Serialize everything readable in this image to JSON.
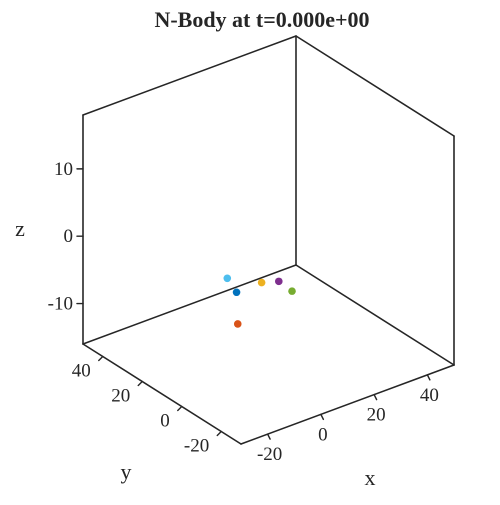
{
  "chart_data": {
    "type": "scatter",
    "projection": "3d",
    "title": "N-Body at t=0.000e+00",
    "xlabel": "x",
    "ylabel": "y",
    "zlabel": "z",
    "xlim": [
      -30,
      50
    ],
    "ylim": [
      -30,
      50
    ],
    "zlim": [
      -16,
      18
    ],
    "x_ticks": [
      -20,
      0,
      20,
      40
    ],
    "y_ticks": [
      -20,
      0,
      20,
      40
    ],
    "z_ticks": [
      -10,
      0,
      10
    ],
    "grid": false,
    "points": [
      {
        "x": -2,
        "y": 10,
        "z": -5,
        "color": "#0072BD"
      },
      {
        "x": 0,
        "y": 0,
        "z": -2,
        "color": "#EDB120"
      },
      {
        "x": -6,
        "y": 4,
        "z": -8,
        "color": "#D95319"
      },
      {
        "x": 2,
        "y": -6,
        "z": -1,
        "color": "#7E2F8E"
      },
      {
        "x": -4,
        "y": 12,
        "z": -3,
        "color": "#4DBEEE"
      },
      {
        "x": 4,
        "y": -10,
        "z": -2,
        "color": "#77AC30"
      }
    ]
  }
}
